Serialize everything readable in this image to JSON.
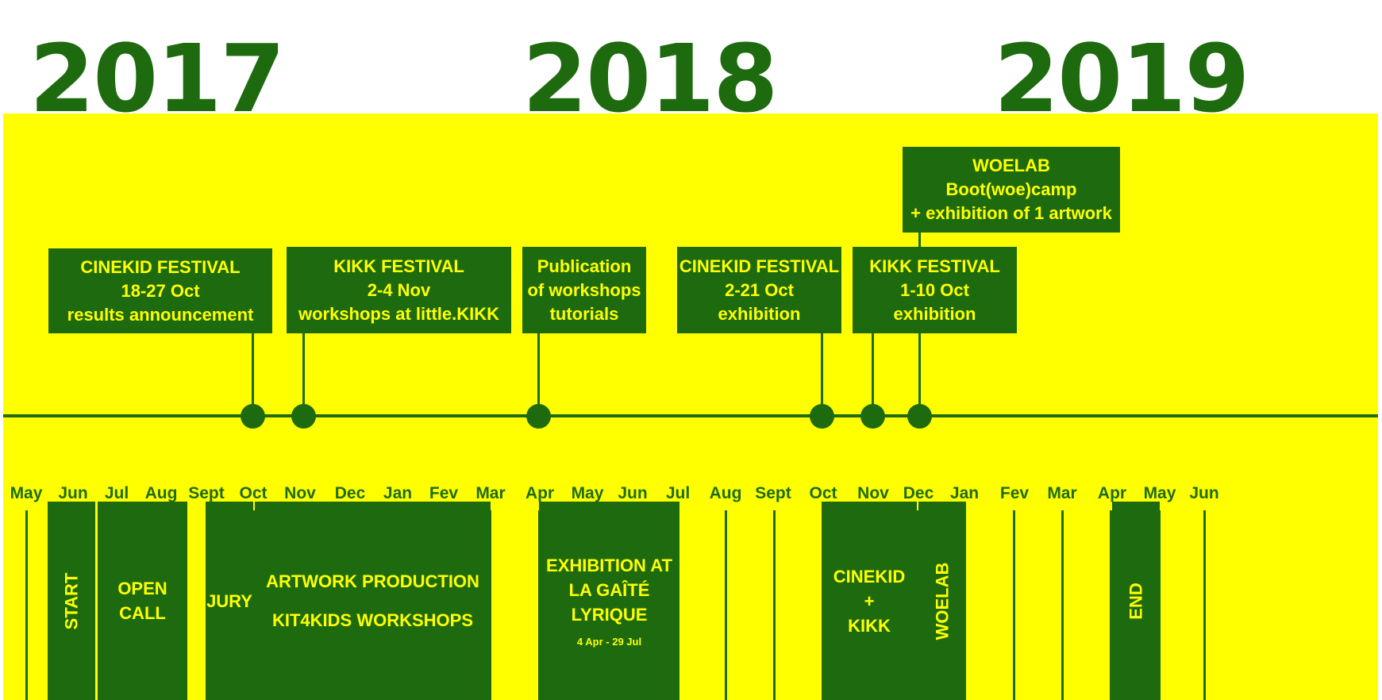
{
  "colors": {
    "background": "#ffff00",
    "accent": "#1e6b0f",
    "text_on_accent": "#ffff00"
  },
  "years": [
    "2017",
    "2018",
    "2019"
  ],
  "events": [
    {
      "lines": [
        "CINEKID FESTIVAL",
        "18-27 Oct",
        "results announcement"
      ]
    },
    {
      "lines": [
        "KIKK FESTIVAL",
        "2-4 Nov",
        "workshops at little.KIKK"
      ]
    },
    {
      "lines": [
        "Publication",
        "of workshops",
        "tutorials"
      ]
    },
    {
      "lines": [
        "CINEKID FESTIVAL",
        "2-21 Oct",
        "exhibition"
      ]
    },
    {
      "lines": [
        "WOELAB",
        "Boot(woe)camp",
        "+ exhibition of 1 artwork"
      ]
    },
    {
      "lines": [
        "KIKK FESTIVAL",
        "1-10 Oct",
        "exhibition"
      ]
    }
  ],
  "months": [
    "May",
    "Jun",
    "Jul",
    "Aug",
    "Sept",
    "Oct",
    "Nov",
    "Dec",
    "Jan",
    "Fev",
    "Mar",
    "Apr",
    "May",
    "Jun",
    "Jul",
    "Aug",
    "Sept",
    "Oct",
    "Nov",
    "Dec",
    "Jan",
    "Fev",
    "Mar",
    "Apr",
    "May",
    "Jun"
  ],
  "phases": [
    {
      "label": "START"
    },
    {
      "lines": [
        "OPEN",
        "CALL"
      ]
    },
    {
      "label": "JURY"
    },
    {
      "lines": [
        "ARTWORK PRODUCTION",
        "KIT4KIDS WORKSHOPS"
      ]
    },
    {
      "lines": [
        "EXHIBITION AT",
        "LA GAÎTÉ LYRIQUE"
      ],
      "note": "4 Apr - 29 Jul"
    },
    {
      "lines": [
        "CINEKID",
        "+",
        "KIKK"
      ]
    },
    {
      "label": "WOELAB"
    },
    {
      "label": "END"
    }
  ]
}
